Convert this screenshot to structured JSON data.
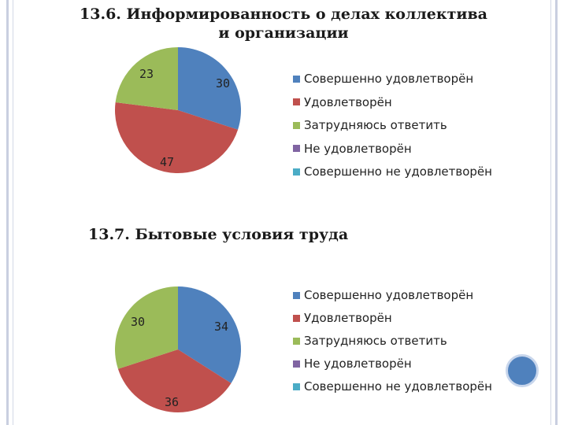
{
  "colors": {
    "blue": "#4f81bd",
    "red": "#c0504d",
    "green": "#9bbb59",
    "purple": "#8064a2",
    "cyan": "#4bacc6",
    "button": "#4f81bd"
  },
  "chart_data": [
    {
      "type": "pie",
      "title": "13.6. Информированность о делах коллектива и организации",
      "categories": [
        "Совершенно удовлетворён",
        "Удовлетворён",
        "Затрудняюсь ответить",
        "Не удовлетворён",
        "Совершенно не удовлетворён"
      ],
      "values": [
        30,
        47,
        23,
        0,
        0
      ],
      "colors": [
        "#4f81bd",
        "#c0504d",
        "#9bbb59",
        "#8064a2",
        "#4bacc6"
      ],
      "legend": "right"
    },
    {
      "type": "pie",
      "title": "13.7. Бытовые условия труда",
      "categories": [
        "Совершенно удовлетворён",
        "Удовлетворён",
        "Затрудняюсь ответить",
        "Не удовлетворён",
        "Совершенно не удовлетворён"
      ],
      "values": [
        34,
        36,
        30,
        0,
        0
      ],
      "colors": [
        "#4f81bd",
        "#c0504d",
        "#9bbb59",
        "#8064a2",
        "#4bacc6"
      ],
      "legend": "right"
    }
  ]
}
